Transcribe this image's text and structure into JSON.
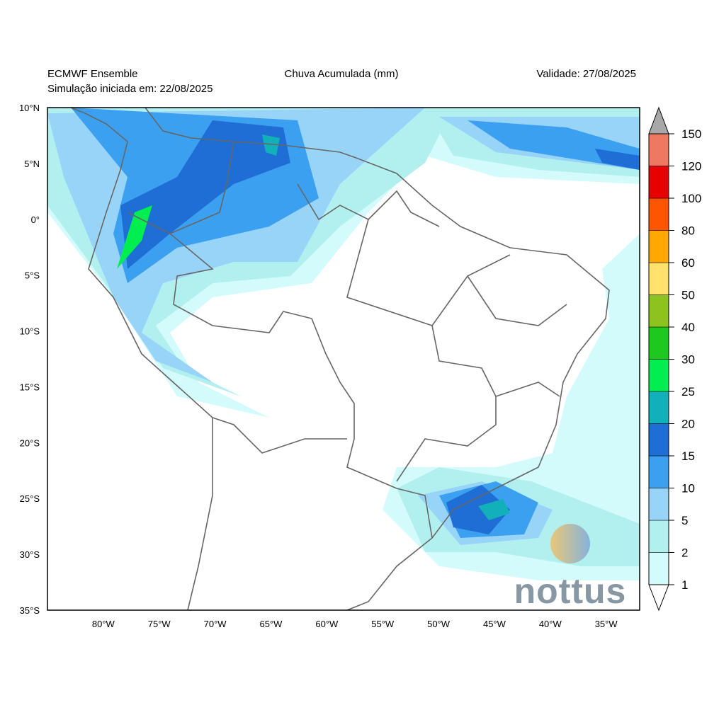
{
  "header": {
    "model": "ECMWF Ensemble",
    "init": "Simulação iniciada em: 22/08/2025",
    "title": "Chuva Acumulada (mm)",
    "valid": "Validade: 27/08/2025"
  },
  "map": {
    "lat_ticks": [
      {
        "value": 10,
        "label": "10°N"
      },
      {
        "value": 5,
        "label": "5°N"
      },
      {
        "value": 0,
        "label": "0°"
      },
      {
        "value": -5,
        "label": "5°S"
      },
      {
        "value": -10,
        "label": "10°S"
      },
      {
        "value": -15,
        "label": "15°S"
      },
      {
        "value": -20,
        "label": "20°S"
      },
      {
        "value": -25,
        "label": "25°S"
      },
      {
        "value": -30,
        "label": "30°S"
      },
      {
        "value": -35,
        "label": "35°S"
      }
    ],
    "lon_ticks": [
      {
        "value": -80,
        "label": "80°W"
      },
      {
        "value": -75,
        "label": "75°W"
      },
      {
        "value": -70,
        "label": "70°W"
      },
      {
        "value": -65,
        "label": "65°W"
      },
      {
        "value": -60,
        "label": "60°W"
      },
      {
        "value": -55,
        "label": "55°W"
      },
      {
        "value": -50,
        "label": "50°W"
      },
      {
        "value": -45,
        "label": "45°W"
      },
      {
        "value": -40,
        "label": "40°W"
      },
      {
        "value": -35,
        "label": "35°W"
      }
    ]
  },
  "colorbar": {
    "levels": [
      1,
      2,
      5,
      10,
      15,
      20,
      25,
      30,
      40,
      50,
      60,
      80,
      100,
      120,
      150
    ],
    "colors": [
      "#d4fbfb",
      "#b2f0f0",
      "#98d4f8",
      "#3ca0f0",
      "#1e6ed6",
      "#12b0b8",
      "#00ee50",
      "#1ec81e",
      "#8cc31e",
      "#ffe16e",
      "#ffa800",
      "#ff5500",
      "#e60000",
      "#ee7860"
    ],
    "over_color": "#a8a8a8"
  },
  "logo": "nottus"
}
